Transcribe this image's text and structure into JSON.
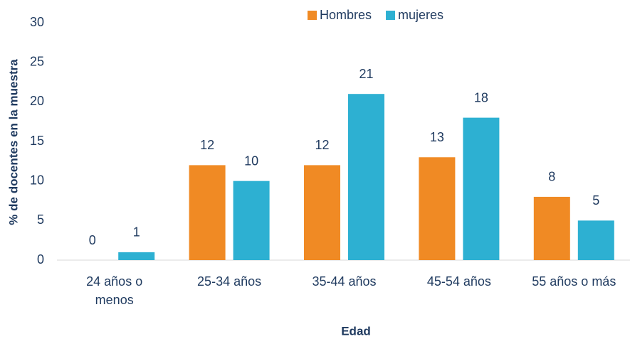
{
  "chart_data": {
    "type": "bar",
    "xlabel": "Edad",
    "ylabel": "% de docentes en la muestra",
    "categories": [
      "24 años o menos",
      "25-34 años",
      "35-44 años",
      "45-54 años",
      "55 años o más"
    ],
    "series": [
      {
        "name": "Hombres",
        "color": "#f08a24",
        "values": [
          0,
          12,
          12,
          13,
          8
        ]
      },
      {
        "name": "mujeres",
        "color": "#2db0d2",
        "values": [
          1,
          10,
          21,
          18,
          5
        ]
      }
    ],
    "ylim": [
      0,
      30
    ],
    "yticks": [
      0,
      5,
      10,
      15,
      20,
      25,
      30
    ],
    "grid": false,
    "legend": "top"
  }
}
